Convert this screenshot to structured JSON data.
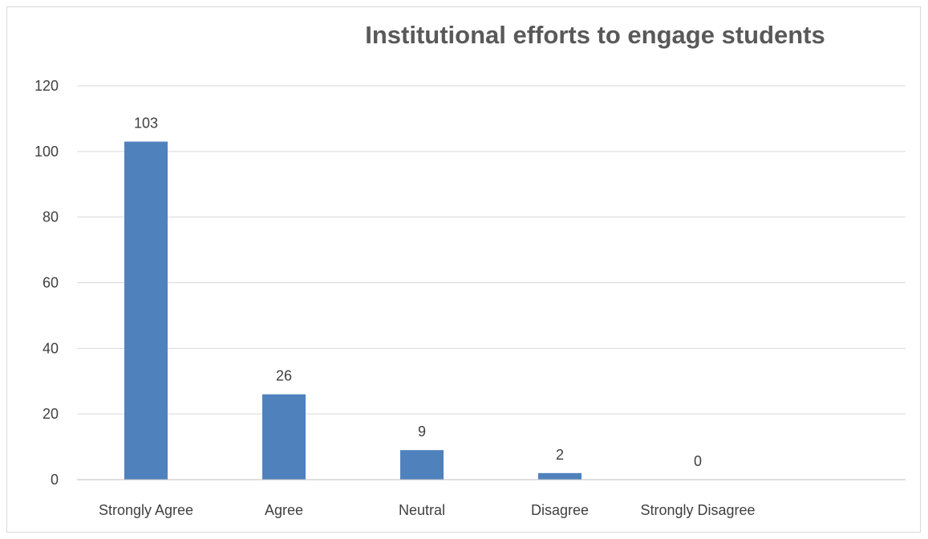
{
  "chart_data": {
    "type": "bar",
    "title": "Institutional efforts to engage students",
    "categories": [
      "Strongly Agree",
      "Agree",
      "Neutral",
      "Disagree",
      "Strongly Disagree"
    ],
    "values": [
      103,
      26,
      9,
      2,
      0
    ],
    "data_labels": [
      "103",
      "26",
      "9",
      "2",
      "0"
    ],
    "xlabel": "",
    "ylabel": "",
    "ylim": [
      0,
      120
    ],
    "yticks": [
      "0",
      "20",
      "40",
      "60",
      "80",
      "100",
      "120"
    ],
    "grid": true,
    "legend": "none",
    "bar_color": "#4f81bd"
  }
}
